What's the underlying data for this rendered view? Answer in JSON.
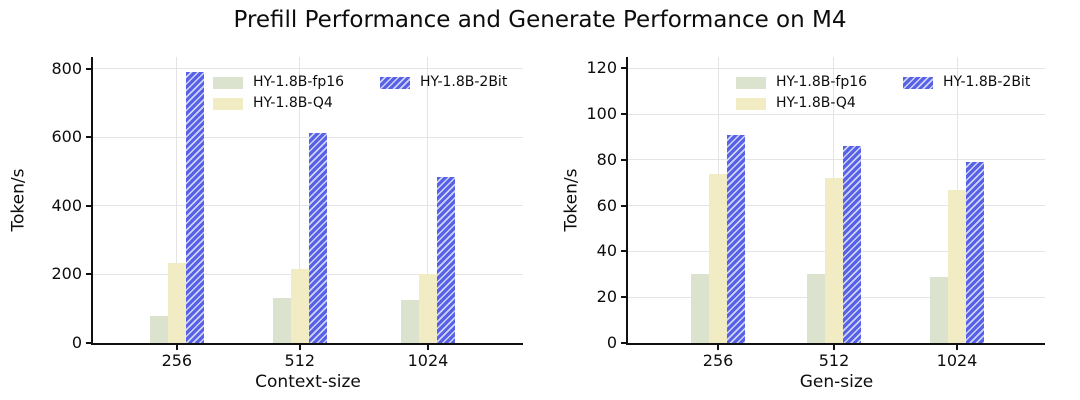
{
  "title": "Prefill Performance and Generate Performance on M4",
  "colors": {
    "fp16": "#dbe3cf",
    "q4": "#f1ecc3",
    "two_bit": "#5661e6",
    "grid": "#e4e4e4",
    "axis": "#111111"
  },
  "chart_data": [
    {
      "type": "bar",
      "name": "prefill",
      "xlabel": "Context-size",
      "ylabel": "Token/s",
      "categories": [
        "256",
        "512",
        "1024"
      ],
      "yticks": [
        0,
        200,
        400,
        600,
        800
      ],
      "ylim": [
        0,
        835
      ],
      "grid": true,
      "legend_position": "upper-left-inside",
      "series": [
        {
          "name": "HY-1.8B-fp16",
          "color": "#dbe3cf",
          "hatch": "none",
          "values": [
            80,
            132,
            126
          ]
        },
        {
          "name": "HY-1.8B-Q4",
          "color": "#f1ecc3",
          "hatch": "none",
          "values": [
            233,
            216,
            200
          ]
        },
        {
          "name": "HY-1.8B-2Bit",
          "color": "#5661e6",
          "hatch": "diagonal",
          "values": [
            790,
            612,
            485
          ]
        }
      ]
    },
    {
      "type": "bar",
      "name": "generate",
      "xlabel": "Gen-size",
      "ylabel": "Token/s",
      "categories": [
        "256",
        "512",
        "1024"
      ],
      "yticks": [
        0,
        20,
        40,
        60,
        80,
        100,
        120
      ],
      "ylim": [
        0,
        125
      ],
      "grid": true,
      "legend_position": "upper-left-inside",
      "series": [
        {
          "name": "HY-1.8B-fp16",
          "color": "#dbe3cf",
          "hatch": "none",
          "values": [
            30,
            30,
            29
          ]
        },
        {
          "name": "HY-1.8B-Q4",
          "color": "#f1ecc3",
          "hatch": "none",
          "values": [
            74,
            72,
            67
          ]
        },
        {
          "name": "HY-1.8B-2Bit",
          "color": "#5661e6",
          "hatch": "diagonal",
          "values": [
            91,
            86,
            79
          ]
        }
      ]
    }
  ]
}
